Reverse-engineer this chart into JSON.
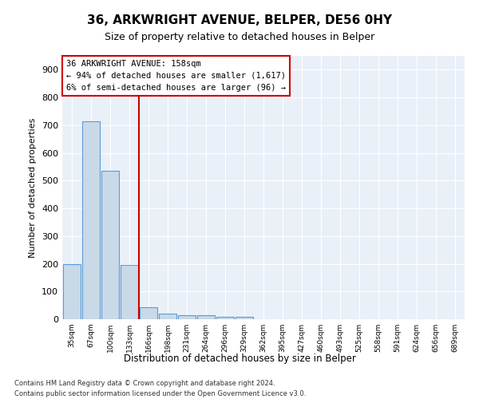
{
  "title1": "36, ARKWRIGHT AVENUE, BELPER, DE56 0HY",
  "title2": "Size of property relative to detached houses in Belper",
  "xlabel": "Distribution of detached houses by size in Belper",
  "ylabel": "Number of detached properties",
  "bin_labels": [
    "35sqm",
    "67sqm",
    "100sqm",
    "133sqm",
    "166sqm",
    "198sqm",
    "231sqm",
    "264sqm",
    "296sqm",
    "329sqm",
    "362sqm",
    "395sqm",
    "427sqm",
    "460sqm",
    "493sqm",
    "525sqm",
    "558sqm",
    "591sqm",
    "624sqm",
    "656sqm",
    "689sqm"
  ],
  "bar_values": [
    200,
    715,
    535,
    195,
    42,
    20,
    15,
    13,
    10,
    10,
    0,
    0,
    0,
    0,
    0,
    0,
    0,
    0,
    0,
    0,
    0
  ],
  "bar_color": "#c9d9e8",
  "bar_edge_color": "#5b9bd5",
  "vline_x": 3.5,
  "annotation_line1": "36 ARKWRIGHT AVENUE: 158sqm",
  "annotation_line2": "← 94% of detached houses are smaller (1,617)",
  "annotation_line3": "6% of semi-detached houses are larger (96) →",
  "vline_color": "#cc0000",
  "annotation_box_color": "#cc0000",
  "ylim": [
    0,
    950
  ],
  "yticks": [
    0,
    100,
    200,
    300,
    400,
    500,
    600,
    700,
    800,
    900
  ],
  "footer1": "Contains HM Land Registry data © Crown copyright and database right 2024.",
  "footer2": "Contains public sector information licensed under the Open Government Licence v3.0.",
  "plot_bg_color": "#eaf0f8"
}
